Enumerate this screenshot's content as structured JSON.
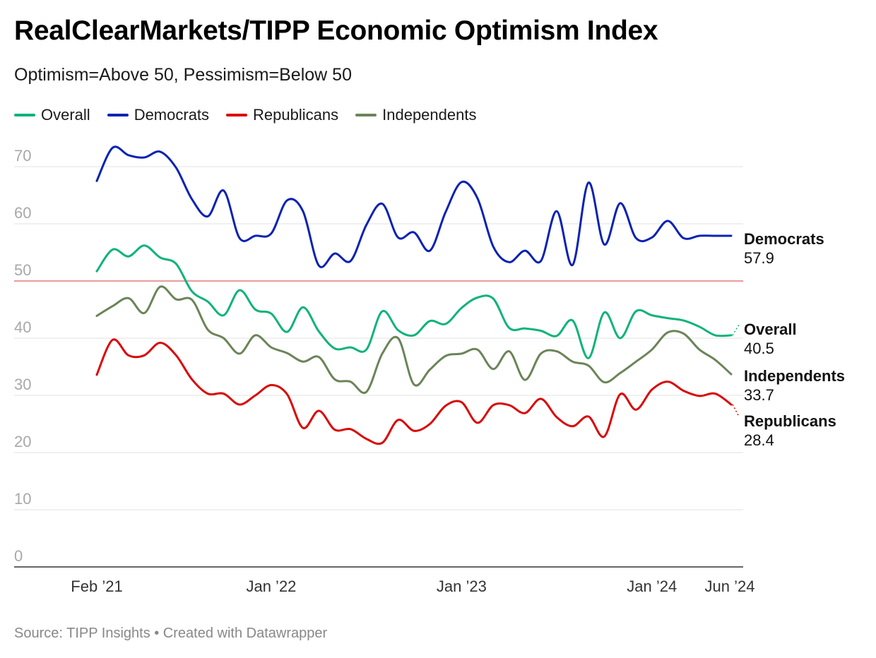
{
  "title": "RealClearMarkets/TIPP Economic Optimism Index",
  "subtitle": "Optimism=Above 50, Pessimism=Below 50",
  "footer": "Source: TIPP Insights • Created with Datawrapper",
  "chart_data": {
    "type": "line",
    "title": "RealClearMarkets/TIPP Economic Optimism Index",
    "subtitle": "Optimism=Above 50, Pessimism=Below 50",
    "xlabel": "",
    "ylabel": "",
    "ylim": [
      0,
      70
    ],
    "yticks": [
      "70",
      "60",
      "50",
      "40",
      "30",
      "20",
      "10",
      "0"
    ],
    "xticks": [
      "Feb ’21",
      "Jan ’22",
      "Jan ’23",
      "Jan ’24",
      "Jun ’24"
    ],
    "reference_line": 50,
    "grid": true,
    "legend_position": "top-left",
    "x": [
      "2021-02",
      "2021-03",
      "2021-04",
      "2021-05",
      "2021-06",
      "2021-07",
      "2021-08",
      "2021-09",
      "2021-10",
      "2021-11",
      "2021-12",
      "2022-01",
      "2022-02",
      "2022-03",
      "2022-04",
      "2022-05",
      "2022-06",
      "2022-07",
      "2022-08",
      "2022-09",
      "2022-10",
      "2022-11",
      "2022-12",
      "2023-01",
      "2023-02",
      "2023-03",
      "2023-04",
      "2023-05",
      "2023-06",
      "2023-07",
      "2023-08",
      "2023-09",
      "2023-10",
      "2023-11",
      "2023-12",
      "2024-01",
      "2024-02",
      "2024-03",
      "2024-04",
      "2024-05",
      "2024-06"
    ],
    "series": [
      {
        "name": "Overall",
        "color": "#0fb37a",
        "values": [
          51.7,
          55.5,
          54.3,
          56.2,
          54.1,
          53.0,
          48.2,
          46.4,
          44.0,
          48.4,
          45.0,
          44.3,
          41.1,
          45.4,
          41.2,
          38.2,
          38.4,
          38.0,
          44.7,
          41.4,
          40.5,
          43.0,
          42.5,
          45.3,
          47.1,
          46.9,
          41.8,
          41.7,
          41.3,
          40.4,
          43.1,
          36.5,
          44.5,
          40.0,
          44.7,
          44.0,
          43.5,
          43.1,
          42.0,
          40.5,
          40.5
        ]
      },
      {
        "name": "Democrats",
        "color": "#0a22b3",
        "values": [
          67.5,
          73.3,
          72.0,
          71.6,
          72.6,
          69.8,
          64.3,
          61.3,
          65.8,
          57.5,
          57.9,
          58.3,
          64.1,
          62.2,
          52.7,
          54.8,
          53.5,
          59.8,
          63.5,
          57.6,
          58.5,
          55.3,
          62.1,
          67.3,
          64.5,
          56.0,
          53.3,
          55.3,
          53.5,
          62.2,
          52.8,
          67.2,
          56.4,
          63.6,
          57.5,
          57.6,
          60.5,
          57.5,
          57.9,
          57.9,
          57.9
        ]
      },
      {
        "name": "Republicans",
        "color": "#d90707",
        "values": [
          33.6,
          39.7,
          37.0,
          37.0,
          39.2,
          37.0,
          32.8,
          30.3,
          30.3,
          28.4,
          30.0,
          31.8,
          30.2,
          24.3,
          27.3,
          24.0,
          24.1,
          22.4,
          21.7,
          25.7,
          23.8,
          25.0,
          28.2,
          28.8,
          25.2,
          28.3,
          28.3,
          26.9,
          29.4,
          26.2,
          24.6,
          26.3,
          22.8,
          30.2,
          27.5,
          31.0,
          32.4,
          30.8,
          29.9,
          30.3,
          28.4
        ]
      },
      {
        "name": "Independents",
        "color": "#6b8458",
        "values": [
          43.9,
          45.6,
          47.0,
          44.4,
          49.0,
          46.8,
          46.7,
          41.5,
          40.0,
          37.3,
          40.5,
          38.4,
          37.4,
          35.9,
          36.7,
          32.8,
          32.4,
          30.6,
          37.3,
          40.0,
          31.9,
          34.5,
          36.9,
          37.3,
          38.0,
          34.6,
          37.7,
          32.7,
          37.3,
          37.7,
          35.9,
          35.2,
          32.3,
          33.9,
          35.9,
          38.0,
          41.0,
          40.8,
          38.0,
          36.2,
          33.7
        ]
      }
    ],
    "end_labels": [
      {
        "name": "Democrats",
        "value": "57.9"
      },
      {
        "name": "Overall",
        "value": "40.5"
      },
      {
        "name": "Independents",
        "value": "33.7"
      },
      {
        "name": "Republicans",
        "value": "28.4"
      }
    ]
  }
}
